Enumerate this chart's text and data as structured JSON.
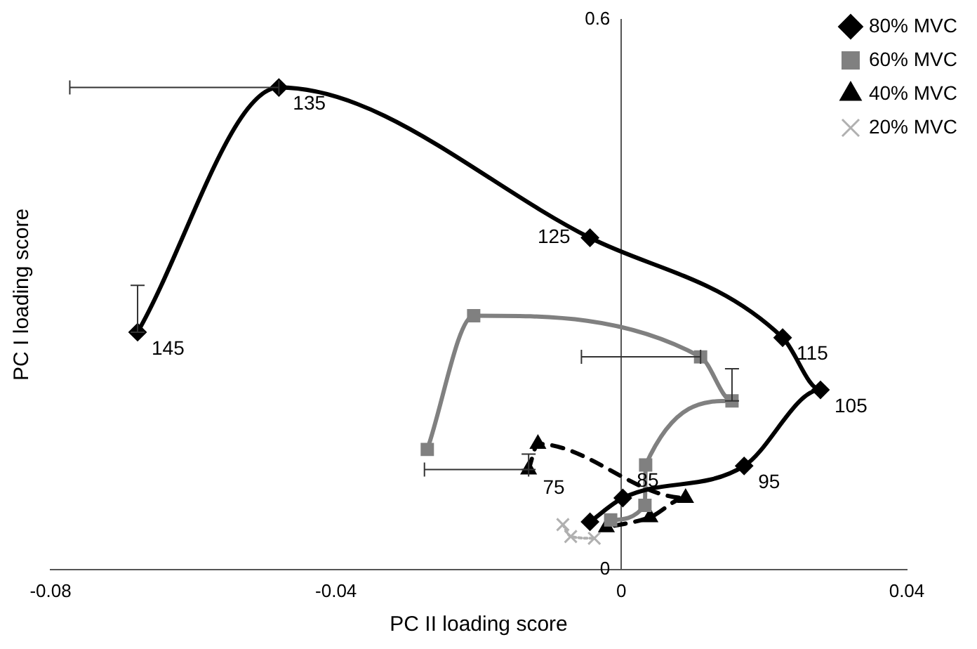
{
  "chart_data": {
    "type": "line",
    "xlabel": "PC II loading score",
    "ylabel": "PC I loading score",
    "xlim": [
      -0.08,
      0.04
    ],
    "xticks": [
      -0.08,
      -0.04,
      0,
      0.04
    ],
    "ylim": [
      0,
      0.6
    ],
    "yticks": [
      0,
      0.6
    ],
    "legend": "top right",
    "series": [
      {
        "name": "80% MVC",
        "color": "#000000",
        "marker": "diamond",
        "line_style": "solid",
        "x": [
          -0.0044,
          0.0002,
          0.0172,
          0.0279,
          0.0226,
          -0.0044,
          -0.048,
          -0.0678
        ],
        "values": [
          0.052,
          0.078,
          0.113,
          0.196,
          0.253,
          0.362,
          0.526,
          0.259
        ],
        "xerrors": [
          null,
          null,
          null,
          null,
          null,
          null,
          [
            -0.0773,
            -0.048
          ],
          null
        ],
        "errors": [
          null,
          null,
          null,
          null,
          null,
          null,
          null,
          [
            0.259,
            0.31
          ]
        ]
      },
      {
        "name": "60% MVC",
        "color": "#808080",
        "marker": "square",
        "line_style": "solid",
        "x": [
          -0.0272,
          -0.0207,
          0.0111,
          0.0155,
          0.0034,
          0.0033,
          -0.0015
        ],
        "values": [
          0.131,
          0.277,
          0.232,
          0.184,
          0.114,
          0.07,
          0.054
        ],
        "xerrors": [
          null,
          null,
          [
            -0.0056,
            0.0111
          ],
          null,
          null,
          null,
          null
        ],
        "errors": [
          null,
          null,
          null,
          [
            0.184,
            0.219
          ],
          null,
          null,
          null
        ]
      },
      {
        "name": "40% MVC",
        "color": "#000000",
        "marker": "triangle",
        "line_style": "dashed",
        "x": [
          -0.013,
          -0.0117,
          0.009,
          0.004,
          -0.0021
        ],
        "values": [
          0.109,
          0.137,
          0.078,
          0.057,
          0.046
        ],
        "xerrors": [
          [
            -0.0276,
            -0.013
          ],
          null,
          null,
          null,
          null
        ],
        "errors": [
          [
            0.109,
            0.126
          ],
          null,
          null,
          null,
          null
        ]
      },
      {
        "name": "20% MVC",
        "color": "#b0b0b0",
        "marker": "cross",
        "line_style": "dotted",
        "x": [
          -0.0082,
          -0.0071,
          -0.0038
        ],
        "values": [
          0.049,
          0.036,
          0.034
        ]
      }
    ],
    "annotations": [
      {
        "text": "75",
        "x": -0.0044,
        "y": 0.052
      },
      {
        "text": "85",
        "x": 0.0002,
        "y": 0.078
      },
      {
        "text": "95",
        "x": 0.0172,
        "y": 0.113
      },
      {
        "text": "105",
        "x": 0.0279,
        "y": 0.196
      },
      {
        "text": "115",
        "x": 0.0226,
        "y": 0.253
      },
      {
        "text": "125",
        "x": -0.0044,
        "y": 0.362
      },
      {
        "text": "135",
        "x": -0.048,
        "y": 0.526
      },
      {
        "text": "145",
        "x": -0.0678,
        "y": 0.259
      }
    ]
  }
}
